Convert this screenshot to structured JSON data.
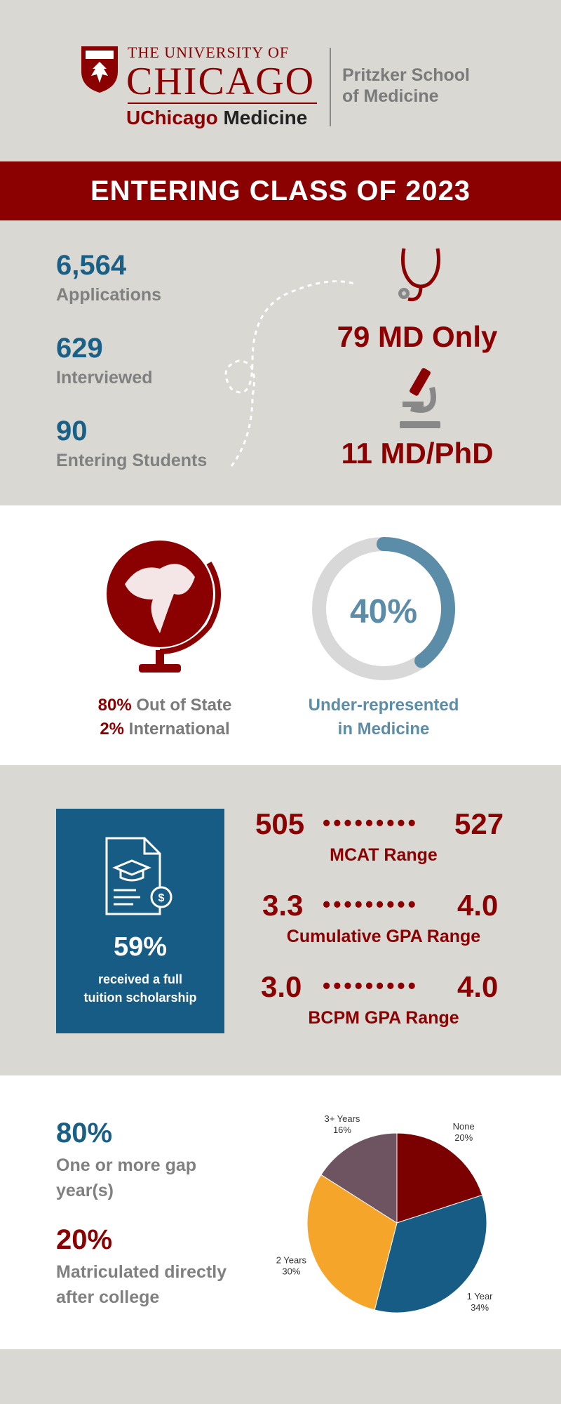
{
  "header": {
    "university_top": "THE UNIVERSITY OF",
    "university_main": "CHICAGO",
    "medicine_brand_red": "UChicago",
    "medicine_brand_dark": "Medicine",
    "school_line1": "Pritzker School",
    "school_line2": "of Medicine"
  },
  "banner": {
    "title": "ENTERING CLASS OF 2023"
  },
  "stats": {
    "applications_value": "6,564",
    "applications_label": "Applications",
    "interviewed_value": "629",
    "interviewed_label": "Interviewed",
    "entering_value": "90",
    "entering_label": "Entering Students",
    "md_only": "79 MD Only",
    "md_phd": "11 MD/PhD"
  },
  "diversity": {
    "out_of_state_pct": "80%",
    "out_of_state_label": "Out of State",
    "international_pct": "2%",
    "international_label": "International",
    "urm_pct_text": "40%",
    "urm_fraction": 0.4,
    "urm_line1": "Under-represented",
    "urm_line2": "in Medicine"
  },
  "academics": {
    "scholarship_pct": "59%",
    "scholarship_line1": "received a full",
    "scholarship_line2": "tuition scholarship",
    "mcat_low": "505",
    "mcat_high": "527",
    "mcat_label": "MCAT Range",
    "cgpa_low": "3.3",
    "cgpa_high": "4.0",
    "cgpa_label": "Cumulative GPA Range",
    "bcpm_low": "3.0",
    "bcpm_high": "4.0",
    "bcpm_label": "BCPM GPA Range",
    "dots": "•••••••••"
  },
  "gap": {
    "gap_pct": "80%",
    "gap_line1": "One or more gap",
    "gap_line2": "year(s)",
    "direct_pct": "20%",
    "direct_line1": "Matriculated directly",
    "direct_line2": "after college"
  },
  "chart_data": {
    "type": "pie",
    "slices": [
      {
        "label": "None",
        "value": 20,
        "pct_text": "20%",
        "color": "#7b0000"
      },
      {
        "label": "1 Year",
        "value": 34,
        "pct_text": "34%",
        "color": "#175c84"
      },
      {
        "label": "2 Years",
        "value": 30,
        "pct_text": "30%",
        "color": "#f5a52a"
      },
      {
        "label": "3+ Years",
        "value": 16,
        "pct_text": "16%",
        "color": "#6e5361"
      }
    ]
  },
  "colors": {
    "maroon": "#8b0000",
    "navy_blue": "#1a5f86",
    "steel_blue": "#5b8ca8",
    "grey": "#808080",
    "beige": "#d9d8d3"
  }
}
